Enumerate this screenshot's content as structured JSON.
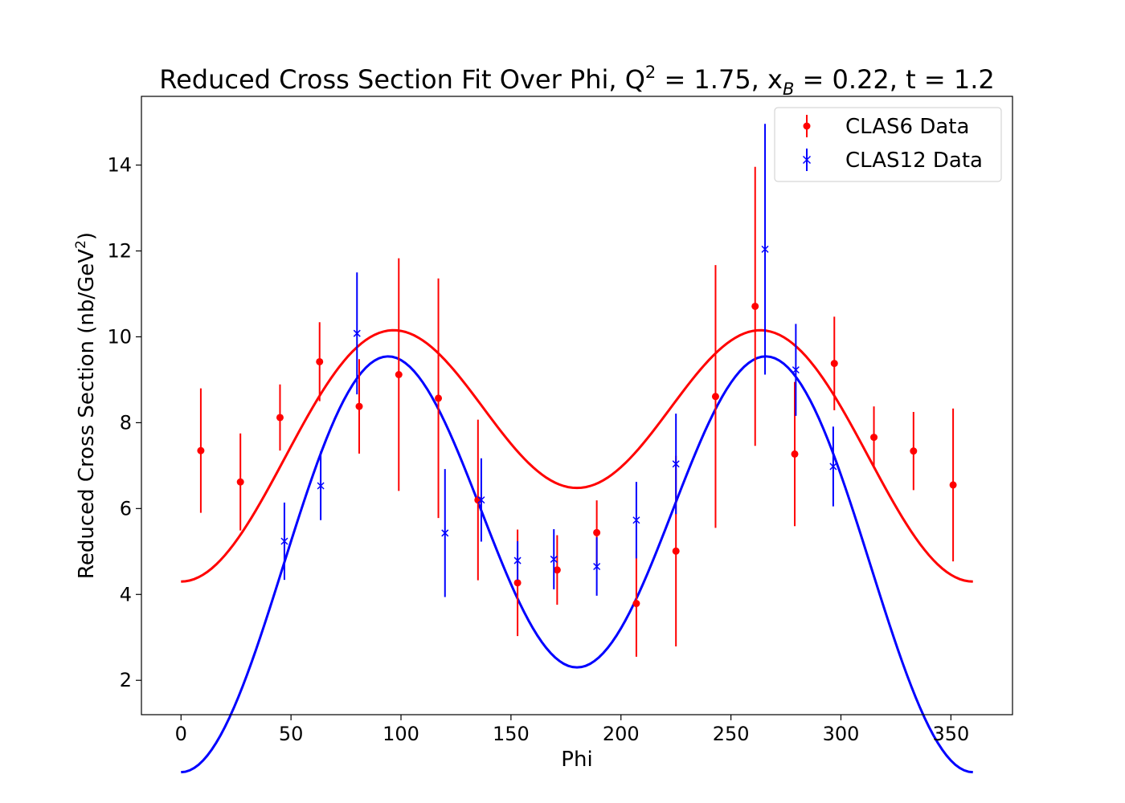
{
  "chart_data": {
    "type": "scatter",
    "title": {
      "prefix": "Reduced Cross Section Fit Over Phi, Q",
      "q_sup": "2",
      "q_val": " = 1.75, x",
      "x_sub": "B",
      "rest": " = 0.22, t = 1.2"
    },
    "xlabel": "Phi",
    "ylabel": {
      "main": "Reduced Cross Section (nb/GeV",
      "sup": "2",
      "close": ")"
    },
    "xlim": [
      -18,
      378
    ],
    "ylim": [
      1.2,
      15.6
    ],
    "xticks": [
      0,
      50,
      100,
      150,
      200,
      250,
      300,
      350
    ],
    "yticks": [
      2,
      4,
      6,
      8,
      10,
      12,
      14
    ],
    "legend_position": "upper right",
    "series": [
      {
        "name": "CLAS6 Data",
        "color": "#ff0000",
        "marker": "circle",
        "points": [
          {
            "x": 9,
            "y": 7.35,
            "err": 1.45
          },
          {
            "x": 27,
            "y": 6.62,
            "err": 1.13
          },
          {
            "x": 45,
            "y": 8.12,
            "err": 0.77
          },
          {
            "x": 63,
            "y": 9.42,
            "err": 0.92
          },
          {
            "x": 81,
            "y": 8.38,
            "err": 1.1
          },
          {
            "x": 99,
            "y": 9.12,
            "err": 2.71
          },
          {
            "x": 117,
            "y": 8.57,
            "err": 2.79
          },
          {
            "x": 135,
            "y": 6.2,
            "err": 1.87
          },
          {
            "x": 153,
            "y": 4.27,
            "err": 1.24
          },
          {
            "x": 171,
            "y": 4.57,
            "err": 0.81
          },
          {
            "x": 189,
            "y": 5.44,
            "err": 0.75
          },
          {
            "x": 207,
            "y": 3.79,
            "err": 1.24
          },
          {
            "x": 225,
            "y": 5.01,
            "err": 2.22
          },
          {
            "x": 243,
            "y": 8.61,
            "err": 3.06
          },
          {
            "x": 261,
            "y": 10.71,
            "err": 3.25
          },
          {
            "x": 279,
            "y": 7.27,
            "err": 1.68
          },
          {
            "x": 297,
            "y": 9.38,
            "err": 1.09
          },
          {
            "x": 315,
            "y": 7.66,
            "err": 0.72
          },
          {
            "x": 333,
            "y": 7.34,
            "err": 0.91
          },
          {
            "x": 351,
            "y": 6.55,
            "err": 1.78
          }
        ],
        "fit": {
          "a": 7.74,
          "b": -1.09,
          "c": -2.35
        }
      },
      {
        "name": "CLAS12 Data",
        "color": "#0000ff",
        "marker": "x",
        "points": [
          {
            "x": 47,
            "y": 5.24,
            "err": 0.9
          },
          {
            "x": 63.5,
            "y": 6.53,
            "err": 0.8
          },
          {
            "x": 80,
            "y": 10.08,
            "err": 1.42
          },
          {
            "x": 120,
            "y": 5.43,
            "err": 1.49
          },
          {
            "x": 136.5,
            "y": 6.2,
            "err": 0.97
          },
          {
            "x": 153,
            "y": 4.79,
            "err": 0.45
          },
          {
            "x": 169.5,
            "y": 4.82,
            "err": 0.7
          },
          {
            "x": 189,
            "y": 4.65,
            "err": 0.68
          },
          {
            "x": 207,
            "y": 5.73,
            "err": 0.89
          },
          {
            "x": 225,
            "y": 7.04,
            "err": 1.17
          },
          {
            "x": 265.5,
            "y": 12.04,
            "err": 2.92
          },
          {
            "x": 279.5,
            "y": 9.23,
            "err": 1.07
          },
          {
            "x": 296.5,
            "y": 6.98,
            "err": 0.93
          }
        ],
        "fit": {
          "a": 5.29,
          "b": -1.22,
          "c": -4.21
        }
      }
    ]
  }
}
